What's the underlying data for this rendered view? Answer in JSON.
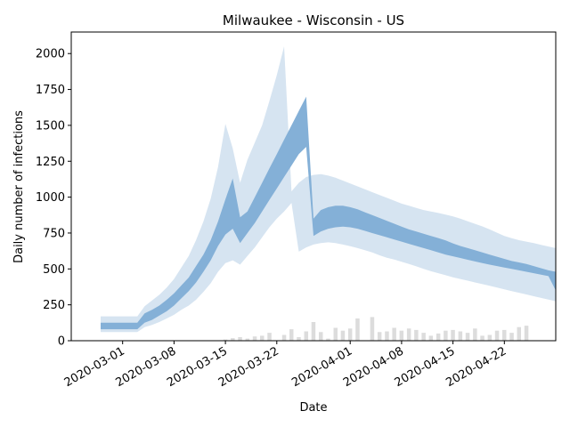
{
  "chart_data": {
    "type": "area",
    "title": "Milwaukee - Wisconsin - US",
    "xlabel": "Date",
    "ylabel": "Daily number of infections",
    "x_start": "2020-02-27",
    "x_end": "2020-04-26",
    "xlim": [
      "2020-02-23",
      "2020-04-29"
    ],
    "ylim": [
      0,
      2150
    ],
    "x_ticks": [
      "2020-03-01",
      "2020-03-08",
      "2020-03-15",
      "2020-03-22",
      "2020-04-01",
      "2020-04-08",
      "2020-04-15",
      "2020-04-22"
    ],
    "y_ticks": [
      0,
      250,
      500,
      750,
      1000,
      1250,
      1500,
      1750,
      2000
    ],
    "colors": {
      "outer_band": "#d6e4f1",
      "inner_band": "#84b0d7",
      "observed_bars": "#dcdcdc"
    },
    "series": [
      {
        "values": {
          "outer_upper": [
            170,
            170,
            170,
            170,
            170,
            170,
            240,
            280,
            320,
            370,
            430,
            510,
            590,
            700,
            830,
            990,
            1210,
            1510,
            1340,
            1100,
            1260,
            1380,
            1500,
            1670,
            1850,
            2050,
            1040,
            1100,
            1140,
            1155,
            1160,
            1150,
            1135,
            1115,
            1095,
            1075,
            1055,
            1035,
            1015,
            995,
            975,
            955,
            940,
            925,
            910,
            900,
            890,
            878,
            866,
            850,
            832,
            814,
            796,
            775,
            752,
            730,
            714,
            700,
            690,
            680,
            668,
            656,
            645
          ],
          "inner_upper": [
            125,
            125,
            125,
            125,
            125,
            125,
            190,
            215,
            245,
            285,
            330,
            385,
            440,
            520,
            600,
            700,
            830,
            985,
            1130,
            860,
            900,
            1000,
            1100,
            1200,
            1300,
            1400,
            1500,
            1600,
            1700,
            850,
            910,
            930,
            940,
            940,
            930,
            915,
            895,
            875,
            855,
            835,
            815,
            795,
            775,
            760,
            745,
            730,
            715,
            698,
            678,
            660,
            645,
            630,
            615,
            600,
            585,
            570,
            555,
            545,
            535,
            520,
            505,
            490,
            480
          ],
          "inner_lower": [
            80,
            80,
            80,
            80,
            80,
            80,
            125,
            145,
            175,
            205,
            245,
            295,
            345,
            405,
            480,
            560,
            660,
            740,
            780,
            680,
            750,
            820,
            900,
            980,
            1060,
            1140,
            1220,
            1300,
            1350,
            730,
            760,
            780,
            790,
            795,
            790,
            780,
            765,
            750,
            735,
            720,
            705,
            690,
            675,
            660,
            645,
            630,
            615,
            600,
            588,
            576,
            564,
            552,
            540,
            530,
            520,
            510,
            500,
            490,
            480,
            470,
            460,
            450,
            350
          ],
          "outer_lower": [
            60,
            60,
            60,
            60,
            60,
            60,
            95,
            110,
            130,
            155,
            180,
            215,
            245,
            285,
            340,
            400,
            480,
            540,
            560,
            530,
            590,
            650,
            720,
            790,
            850,
            900,
            960,
            620,
            650,
            670,
            680,
            685,
            680,
            670,
            658,
            645,
            630,
            615,
            595,
            578,
            565,
            550,
            535,
            518,
            500,
            484,
            470,
            456,
            442,
            430,
            418,
            406,
            394,
            382,
            370,
            358,
            346,
            334,
            322,
            310,
            298,
            286,
            275
          ],
          "observed": [
            0,
            0,
            0,
            0,
            0,
            0,
            0,
            0,
            0,
            0,
            0,
            0,
            0,
            0,
            0,
            0,
            0,
            8,
            18,
            25,
            15,
            30,
            35,
            55,
            0,
            40,
            80,
            25,
            65,
            130,
            60,
            15,
            90,
            70,
            85,
            155,
            0,
            165,
            60,
            65,
            90,
            70,
            85,
            75,
            55,
            35,
            50,
            70,
            75,
            65,
            55,
            85,
            35,
            40,
            70,
            75,
            55,
            95,
            105
          ]
        }
      }
    ]
  }
}
